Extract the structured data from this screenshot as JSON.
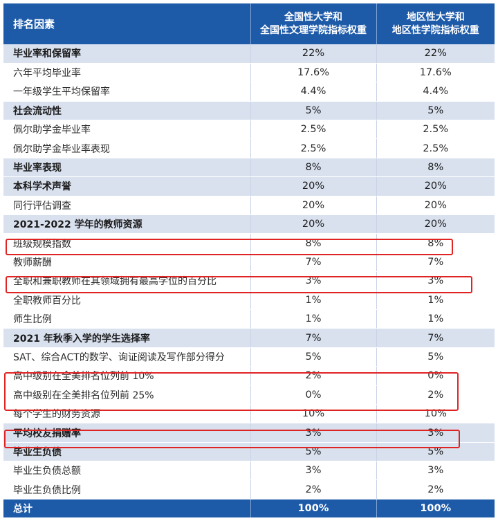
{
  "header": {
    "factor": "排名因素",
    "col2_line1": "全国性大学和",
    "col2_line2": "全国性文理学院指标权重",
    "col3_line1": "地区性大学和",
    "col3_line2": "地区性学院指标权重"
  },
  "rows": [
    {
      "label": "毕业率和保留率",
      "v1": "22%",
      "v2": "22%",
      "type": "cat"
    },
    {
      "label": "六年平均毕业率",
      "v1": "17.6%",
      "v2": "17.6%",
      "type": "sub"
    },
    {
      "label": "一年级学生平均保留率",
      "v1": "4.4%",
      "v2": "4.4%",
      "type": "sub"
    },
    {
      "label": "社会流动性",
      "v1": "5%",
      "v2": "5%",
      "type": "cat"
    },
    {
      "label": "佩尔助学金毕业率",
      "v1": "2.5%",
      "v2": "2.5%",
      "type": "sub"
    },
    {
      "label": "佩尔助学金毕业率表现",
      "v1": "2.5%",
      "v2": "2.5%",
      "type": "sub"
    },
    {
      "label": "毕业率表现",
      "v1": "8%",
      "v2": "8%",
      "type": "cat"
    },
    {
      "label": "本科学术声誉",
      "v1": "20%",
      "v2": "20%",
      "type": "cat"
    },
    {
      "label": "同行评估调查",
      "v1": "20%",
      "v2": "20%",
      "type": "sub"
    },
    {
      "label": "2021-2022 学年的教师资源",
      "v1": "20%",
      "v2": "20%",
      "type": "cat"
    },
    {
      "label": "班级规模指数",
      "v1": "8%",
      "v2": "8%",
      "type": "sub"
    },
    {
      "label": "教师薪酬",
      "v1": "7%",
      "v2": "7%",
      "type": "sub"
    },
    {
      "label": "全职和兼职教师在其领域拥有最高学位的百分比",
      "v1": "3%",
      "v2": "3%",
      "type": "sub"
    },
    {
      "label": "全职教师百分比",
      "v1": "1%",
      "v2": "1%",
      "type": "sub"
    },
    {
      "label": "师生比例",
      "v1": "1%",
      "v2": "1%",
      "type": "sub"
    },
    {
      "label": "2021 年秋季入学的学生选择率",
      "v1": "7%",
      "v2": "7%",
      "type": "cat"
    },
    {
      "label": "SAT、综合ACT的数学、询证阅读及写作部分得分",
      "v1": "5%",
      "v2": "5%",
      "type": "sub"
    },
    {
      "label": "高中级别在全美排名位列前 10%",
      "v1": "2%",
      "v2": "0%",
      "type": "sub"
    },
    {
      "label": "高中级别在全美排名位列前 25%",
      "v1": "0%",
      "v2": "2%",
      "type": "sub"
    },
    {
      "label": "每个学生的财务资源",
      "v1": "10%",
      "v2": "10%",
      "type": "sub"
    },
    {
      "label": "平均校友捐赠率",
      "v1": "3%",
      "v2": "3%",
      "type": "cat"
    },
    {
      "label": "毕业生负债",
      "v1": "5%",
      "v2": "5%",
      "type": "cat"
    },
    {
      "label": "毕业生负债总额",
      "v1": "3%",
      "v2": "3%",
      "type": "sub"
    },
    {
      "label": "毕业生负债比例",
      "v1": "2%",
      "v2": "2%",
      "type": "sub"
    }
  ],
  "total": {
    "label": "总计",
    "v1": "100%",
    "v2": "100%"
  },
  "colors": {
    "header_bg": "#1d5aa8",
    "category_bg": "#d9e1ef",
    "highlight_border": "#e02424"
  }
}
